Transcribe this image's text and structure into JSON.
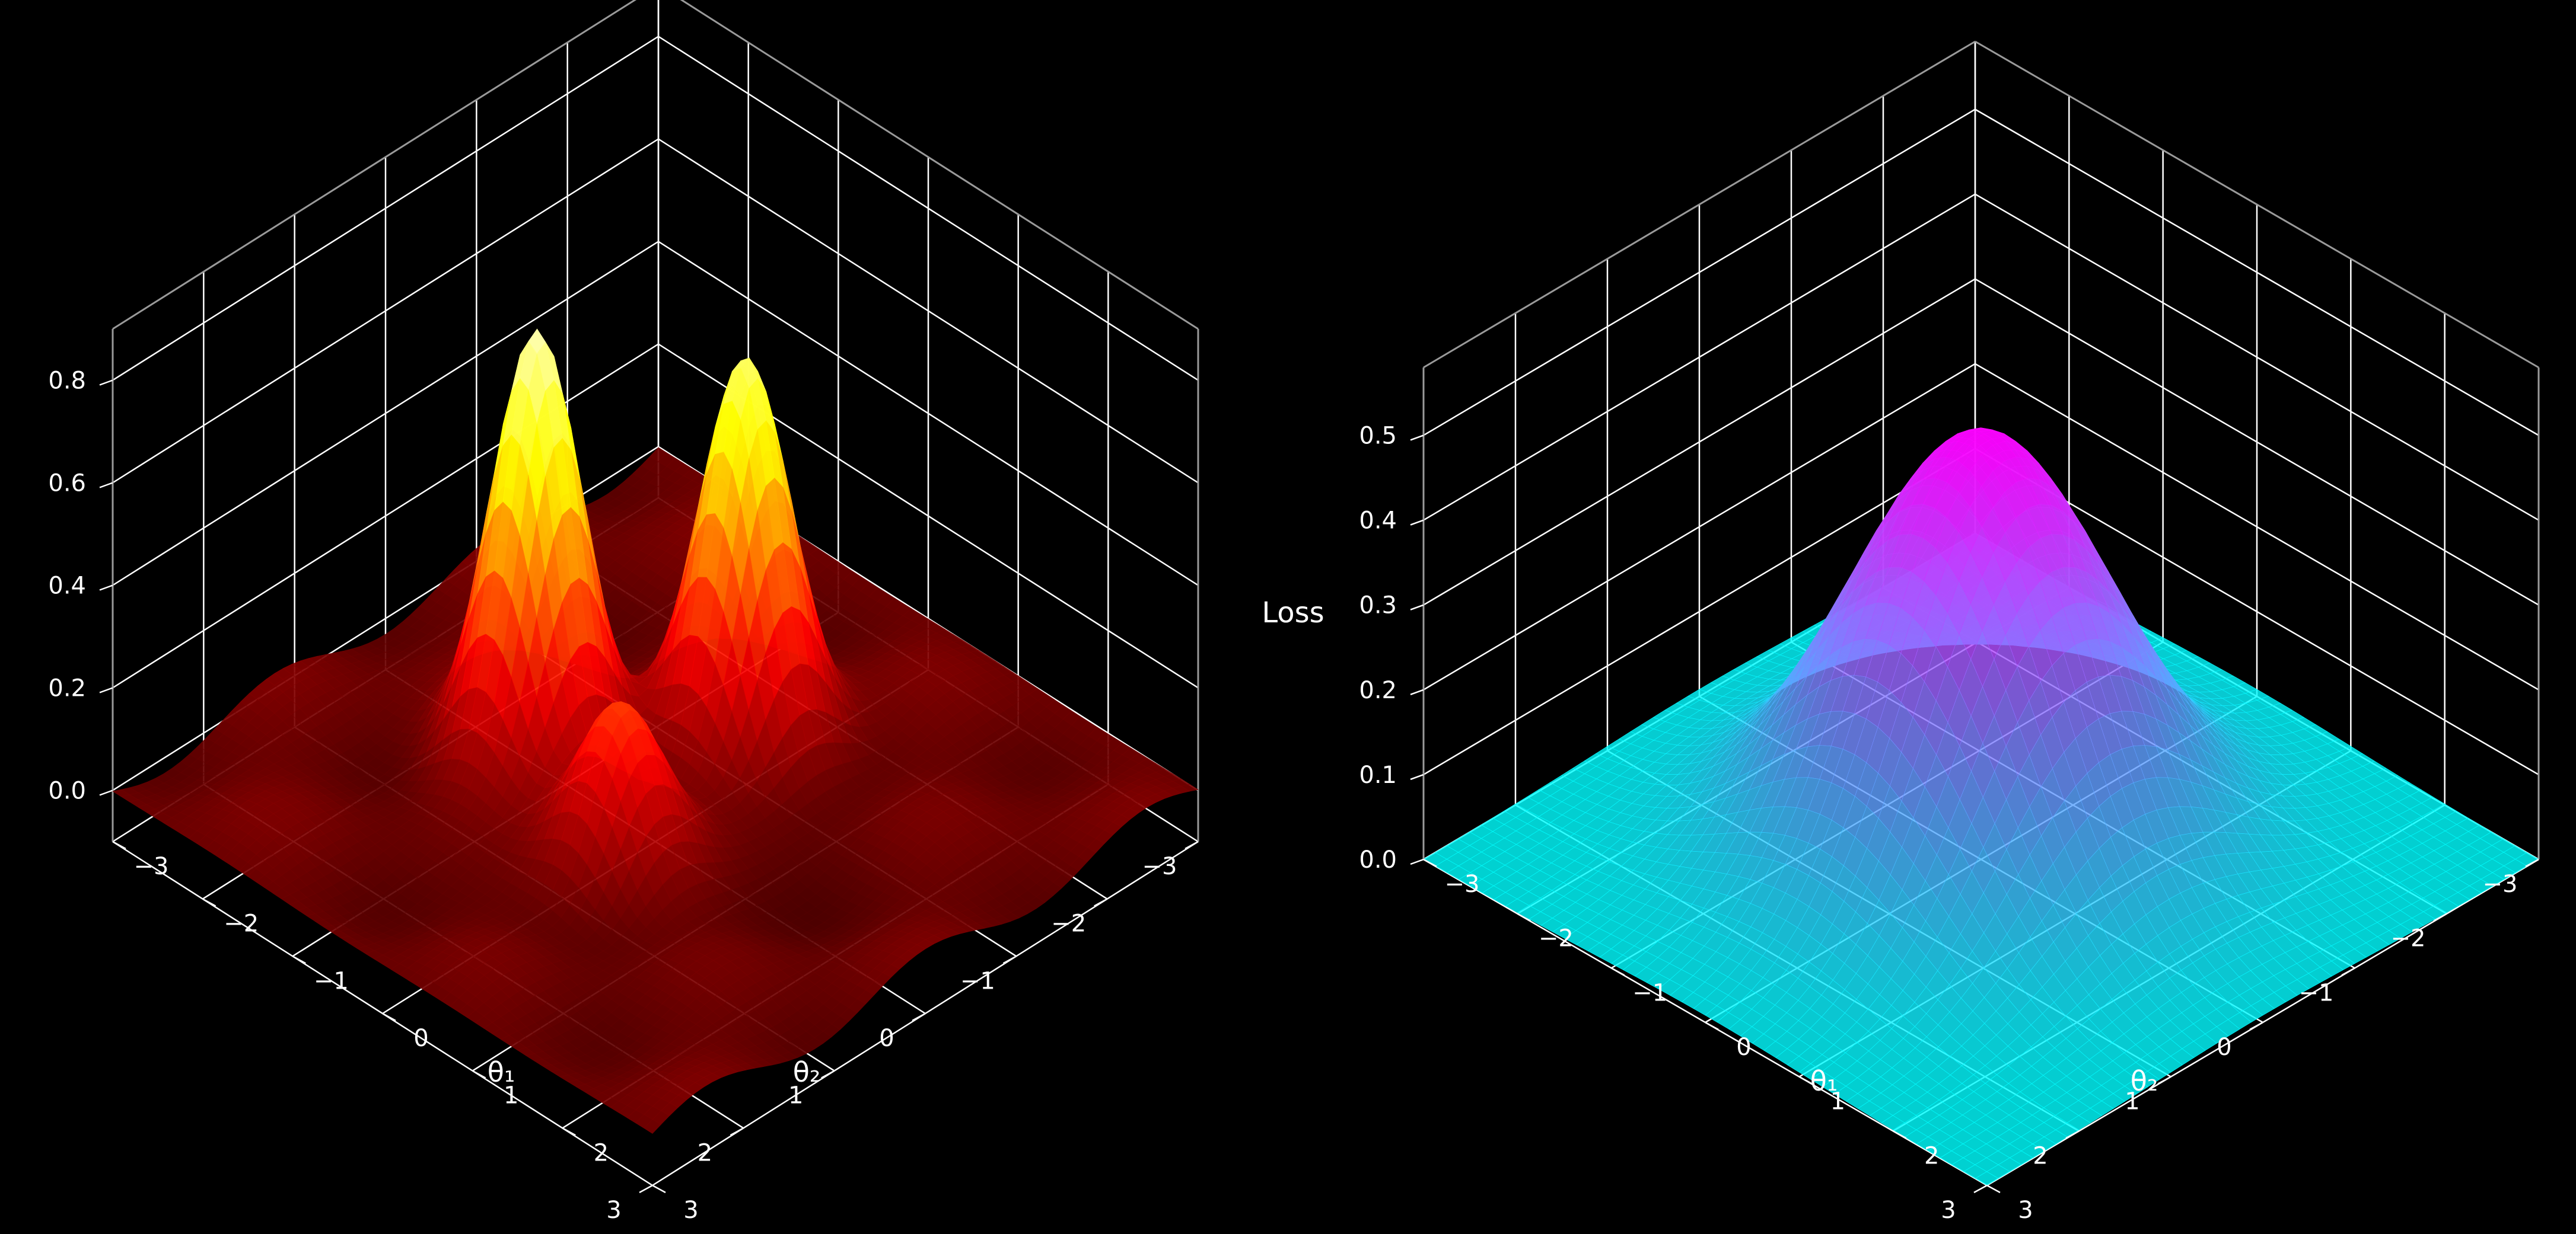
{
  "chart_data": [
    {
      "type": "surface",
      "title": "",
      "xlabel": "θ₁",
      "ylabel": "θ₂",
      "zlabel": "",
      "xlim": [
        -3,
        3
      ],
      "ylim": [
        -3,
        3
      ],
      "zlim": [
        -0.1,
        0.9
      ],
      "xticks": [
        "−3",
        "−2",
        "−1",
        "0",
        "1",
        "2",
        "3"
      ],
      "yticks": [
        "−3",
        "−2",
        "−1",
        "0",
        "1",
        "2",
        "3"
      ],
      "zticks": [
        "0.0",
        "0.2",
        "0.4",
        "0.6",
        "0.8"
      ],
      "zticks_values": [
        0.0,
        0.2,
        0.4,
        0.6,
        0.8
      ],
      "colormap": "hot",
      "grid": true,
      "peaks": [
        {
          "theta1": -1.0,
          "theta2": 0.3,
          "height": 0.85
        },
        {
          "theta1": 0.0,
          "theta2": -1.0,
          "height": 0.75
        },
        {
          "theta1": 0.4,
          "theta2": 0.8,
          "height": 0.35
        }
      ],
      "z_min": -0.1,
      "z_max": 0.88
    },
    {
      "type": "surface",
      "title": "",
      "xlabel": "θ₁",
      "ylabel": "θ₂",
      "zlabel": "Loss",
      "xlim": [
        -3,
        3
      ],
      "ylim": [
        -3,
        3
      ],
      "zlim": [
        0.0,
        0.58
      ],
      "xticks": [
        "−3",
        "−2",
        "−1",
        "0",
        "1",
        "2",
        "3"
      ],
      "yticks": [
        "−3",
        "−2",
        "−1",
        "0",
        "1",
        "2",
        "3"
      ],
      "zticks": [
        "0.0",
        "0.1",
        "0.2",
        "0.3",
        "0.4",
        "0.5"
      ],
      "zticks_values": [
        0.0,
        0.1,
        0.2,
        0.3,
        0.4,
        0.5
      ],
      "colormap": "cool",
      "grid": true,
      "peaks": [
        {
          "theta1": 0.0,
          "theta2": 0.0,
          "height": 0.5
        }
      ],
      "z_min": 0.0,
      "z_max": 0.5
    }
  ]
}
